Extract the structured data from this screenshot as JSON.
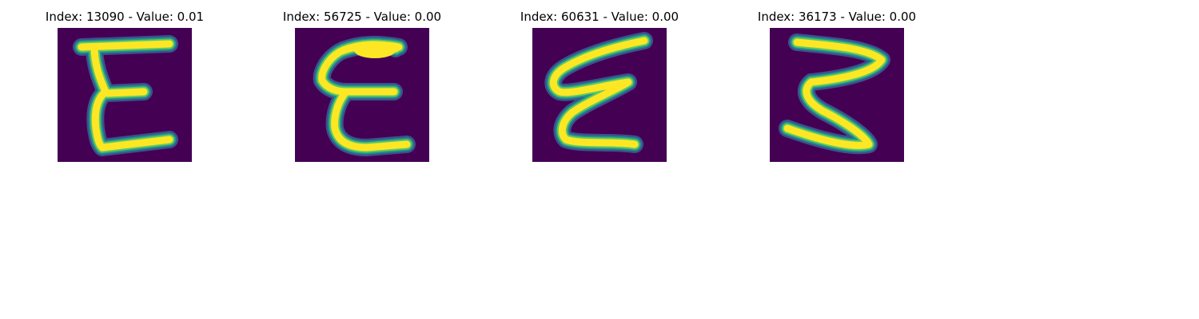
{
  "figure": {
    "panels": [
      {
        "title": "Index: 13090 - Value: 0.01",
        "glyph": "E"
      },
      {
        "title": "Index: 56725 - Value: 0.00",
        "glyph": "E"
      },
      {
        "title": "Index: 60631 - Value: 0.00",
        "glyph": "E"
      },
      {
        "title": "Index: 36173 - Value: 0.00",
        "glyph": "E"
      }
    ],
    "colormap": {
      "background": "#440154",
      "edge_dark": "#3b528b",
      "edge_mid": "#21918c",
      "edge_light": "#5ec962",
      "foreground": "#fde725"
    }
  }
}
